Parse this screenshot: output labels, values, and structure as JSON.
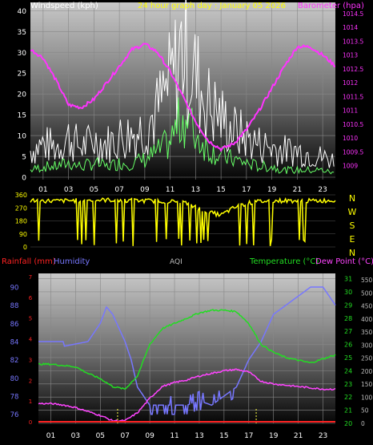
{
  "colors": {
    "wind_title": "#ffffff",
    "graph_title": "#ffff00",
    "baro": "#ff33ff",
    "wind_gust": "#ffffff",
    "wind_avg": "#66ff66",
    "dir": "#ffff00",
    "rain": "#ff2222",
    "humidity": "#7777ff",
    "temp": "#22dd22",
    "dew": "#ff44ff",
    "aqi": "#bbbbbb"
  },
  "chart_data": [
    {
      "type": "line",
      "title": "24 hour graph day : January 05 2026",
      "ylabel": "Windspeed (kph)",
      "y2label": "Barometer (hpa)",
      "x_ticks": [
        "01",
        "03",
        "05",
        "07",
        "09",
        "11",
        "13",
        "15",
        "17",
        "19",
        "21",
        "23"
      ],
      "ylim": [
        0,
        42
      ],
      "y_ticks": [
        "0",
        "5",
        "10",
        "15",
        "20",
        "25",
        "30",
        "35",
        "40"
      ],
      "y2lim": [
        1008.5,
        1014.9
      ],
      "y2_ticks": [
        "1009",
        "1009.5",
        "1010",
        "1010.5",
        "1011",
        "1011.5",
        "1012",
        "1012.5",
        "1013",
        "1013.5",
        "1014",
        "1014.5"
      ],
      "series": [
        {
          "key": "gust",
          "x": [
            0,
            1,
            2,
            3,
            4,
            5,
            6,
            7,
            8,
            9,
            10,
            11,
            11.5,
            12,
            12.5,
            13,
            14,
            15,
            16,
            17,
            18,
            19,
            20,
            21,
            22,
            23,
            24
          ],
          "y": [
            8,
            10,
            9,
            12,
            9,
            11,
            10,
            12,
            13,
            15,
            20,
            28,
            33,
            40,
            35,
            30,
            22,
            18,
            14,
            12,
            10,
            9,
            8,
            8,
            7,
            6,
            5
          ]
        },
        {
          "key": "avg",
          "x": [
            0,
            1,
            2,
            3,
            4,
            5,
            6,
            7,
            8,
            9,
            10,
            11,
            11.5,
            12,
            12.5,
            13,
            14,
            15,
            16,
            17,
            18,
            19,
            20,
            21,
            22,
            23,
            24
          ],
          "y": [
            2,
            3,
            3,
            4,
            3,
            4,
            3,
            4,
            4,
            5,
            7,
            10,
            14,
            17,
            15,
            12,
            8,
            6,
            5,
            4,
            3,
            3,
            2,
            2,
            2,
            2,
            1
          ]
        },
        {
          "key": "baro",
          "x": [
            0,
            1,
            2,
            3,
            4,
            5,
            6,
            7,
            8,
            9,
            10,
            11,
            12,
            13,
            14,
            15,
            16,
            17,
            18,
            19,
            20,
            21,
            22,
            23,
            24
          ],
          "y": [
            1013.2,
            1012.9,
            1012.1,
            1011.2,
            1011.1,
            1011.4,
            1012.0,
            1012.6,
            1013.2,
            1013.4,
            1013.1,
            1012.4,
            1011.5,
            1010.6,
            1009.9,
            1009.6,
            1009.8,
            1010.3,
            1011.0,
            1011.8,
            1012.6,
            1013.3,
            1013.3,
            1013.0,
            1012.6
          ]
        }
      ]
    },
    {
      "type": "line",
      "y_ticks": [
        "0",
        "90",
        "180",
        "270",
        "360"
      ],
      "ylim": [
        0,
        360
      ],
      "right_labels": [
        "N",
        "W",
        "S",
        "E",
        "N"
      ],
      "series": [
        {
          "key": "direction",
          "x": [
            0,
            2,
            4,
            6,
            8,
            10,
            12,
            14,
            15,
            16,
            17,
            18,
            20,
            22,
            24
          ],
          "y": [
            320,
            318,
            322,
            325,
            320,
            318,
            310,
            240,
            220,
            270,
            300,
            315,
            320,
            318,
            322
          ]
        }
      ]
    },
    {
      "type": "line",
      "legend": [
        "Rainfall (mm)",
        "Humidity",
        "AQI",
        "Temperature (°C)",
        "Dew Point (°C)"
      ],
      "x_ticks": [
        "01",
        "03",
        "05",
        "07",
        "09",
        "11",
        "13",
        "15",
        "17",
        "19",
        "21",
        "23"
      ],
      "humidity_ticks": [
        "76",
        "78",
        "80",
        "82",
        "84",
        "86",
        "88",
        "90"
      ],
      "humidity_lim": [
        75,
        91.5
      ],
      "rain_ticks": [
        "0",
        "1",
        "2",
        "3",
        "4",
        "5",
        "6",
        "7"
      ],
      "temp_ticks": [
        "20",
        "21",
        "22",
        "23",
        "24",
        "25",
        "26",
        "27",
        "28",
        "29",
        "30",
        "31"
      ],
      "temp_lim": [
        20,
        31.4
      ],
      "aqi_ticks": [
        "0",
        "50",
        "100",
        "150",
        "200",
        "250",
        "300",
        "350",
        "400",
        "450",
        "500",
        "550"
      ],
      "series": [
        {
          "key": "humidity",
          "x": [
            0,
            2,
            2.1,
            4,
            5,
            5.5,
            6,
            7,
            7.5,
            8,
            8.5,
            9,
            10,
            11,
            12,
            13,
            14,
            15,
            16,
            17,
            18,
            19,
            20,
            21,
            22,
            23,
            24
          ],
          "y": [
            84,
            84,
            83.5,
            84,
            86,
            87.8,
            87,
            84,
            82,
            79,
            78,
            77,
            77,
            77,
            77,
            77.5,
            77,
            78,
            79,
            82,
            84,
            87,
            88,
            89,
            90,
            90,
            88
          ]
        },
        {
          "key": "temperature",
          "x": [
            0,
            1,
            2,
            3,
            4,
            5,
            6,
            7,
            8,
            9,
            10,
            11,
            12,
            13,
            14,
            15,
            16,
            17,
            18,
            19,
            20,
            21,
            22,
            23,
            24
          ],
          "y": [
            24.5,
            24.5,
            24.4,
            24.3,
            23.8,
            23.4,
            22.8,
            22.6,
            23.6,
            26.0,
            27.2,
            27.6,
            28.0,
            28.4,
            28.6,
            28.6,
            28.5,
            27.6,
            26.0,
            25.4,
            25.0,
            24.8,
            24.6,
            24.9,
            25.2
          ]
        },
        {
          "key": "dewpoint",
          "x": [
            0,
            1,
            2,
            3,
            4,
            5,
            6,
            7,
            8,
            9,
            10,
            11,
            12,
            13,
            14,
            15,
            16,
            17,
            18,
            19,
            20,
            21,
            22,
            23,
            24
          ],
          "y": [
            21.5,
            21.5,
            21.4,
            21.2,
            20.9,
            20.6,
            20.2,
            20.2,
            20.8,
            21.9,
            22.8,
            23.1,
            23.3,
            23.6,
            23.8,
            24.0,
            24.1,
            23.9,
            23.2,
            23.0,
            22.9,
            22.8,
            22.7,
            22.6,
            22.6
          ]
        },
        {
          "key": "rain",
          "x": [
            0,
            24
          ],
          "y": [
            0,
            0
          ]
        }
      ]
    }
  ]
}
